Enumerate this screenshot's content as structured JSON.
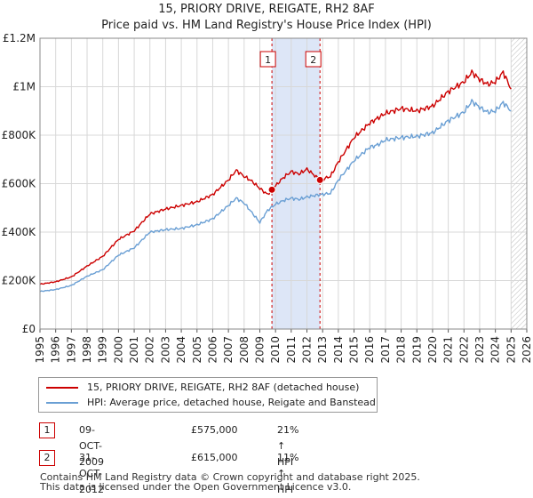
{
  "chart_data": {
    "type": "line",
    "title": "15, PRIORY DRIVE, REIGATE, RH2 8AF",
    "subtitle": "Price paid vs. HM Land Registry's House Price Index (HPI)",
    "xlabel": "",
    "ylabel": "",
    "xlim": [
      1995,
      2026
    ],
    "ylim": [
      0,
      1200000
    ],
    "grid": true,
    "x_ticks": [
      1995,
      1996,
      1997,
      1998,
      1999,
      2000,
      2001,
      2002,
      2003,
      2004,
      2005,
      2006,
      2007,
      2008,
      2009,
      2010,
      2011,
      2012,
      2013,
      2014,
      2015,
      2016,
      2017,
      2018,
      2019,
      2020,
      2021,
      2022,
      2023,
      2024,
      2025,
      2026
    ],
    "y_ticks": [
      {
        "value": 0,
        "label": "£0"
      },
      {
        "value": 200000,
        "label": "£200K"
      },
      {
        "value": 400000,
        "label": "£400K"
      },
      {
        "value": 600000,
        "label": "£600K"
      },
      {
        "value": 800000,
        "label": "£800K"
      },
      {
        "value": 1000000,
        "label": "£1M"
      },
      {
        "value": 1200000,
        "label": "£1.2M"
      }
    ],
    "shaded_range": [
      2009.77,
      2012.83
    ],
    "hatched_from": 2025.0,
    "series": [
      {
        "name": "15, PRIORY DRIVE, REIGATE, RH2 8AF (detached house)",
        "color": "#cc0000",
        "x": [
          1995.0,
          1996.0,
          1997.0,
          1998.0,
          1999.0,
          2000.0,
          2001.0,
          2002.0,
          2003.0,
          2004.0,
          2005.0,
          2006.0,
          2007.0,
          2007.5,
          2008.0,
          2008.5,
          2009.0,
          2009.5,
          2009.77,
          2010.5,
          2011.0,
          2011.5,
          2012.0,
          2012.83,
          2013.5,
          2014.0,
          2015.0,
          2016.0,
          2016.5,
          2017.0,
          2018.0,
          2019.0,
          2020.0,
          2021.0,
          2022.0,
          2022.5,
          2023.0,
          2023.5,
          2024.0,
          2024.5,
          2025.0
        ],
        "y": [
          185000,
          195000,
          215000,
          260000,
          300000,
          370000,
          405000,
          475000,
          495000,
          510000,
          525000,
          555000,
          615000,
          655000,
          630000,
          610000,
          580000,
          555000,
          575000,
          625000,
          650000,
          640000,
          660000,
          615000,
          630000,
          690000,
          790000,
          850000,
          870000,
          890000,
          910000,
          900000,
          920000,
          980000,
          1020000,
          1060000,
          1030000,
          1010000,
          1020000,
          1060000,
          990000
        ]
      },
      {
        "name": "HPI: Average price, detached house, Reigate and Banstead",
        "color": "#6a9fd4",
        "x": [
          1995.0,
          1996.0,
          1997.0,
          1998.0,
          1999.0,
          2000.0,
          2001.0,
          2002.0,
          2003.0,
          2004.0,
          2005.0,
          2006.0,
          2007.0,
          2007.5,
          2008.0,
          2008.5,
          2009.0,
          2009.5,
          2010.0,
          2010.5,
          2011.0,
          2011.5,
          2012.0,
          2012.83,
          2013.5,
          2014.0,
          2015.0,
          2016.0,
          2016.5,
          2017.0,
          2018.0,
          2019.0,
          2020.0,
          2021.0,
          2022.0,
          2022.5,
          2023.0,
          2023.5,
          2024.0,
          2024.5,
          2025.0
        ],
        "y": [
          155000,
          163000,
          180000,
          218000,
          245000,
          305000,
          335000,
          400000,
          410000,
          415000,
          430000,
          455000,
          510000,
          540000,
          520000,
          480000,
          440000,
          490000,
          515000,
          530000,
          540000,
          535000,
          545000,
          555000,
          560000,
          615000,
          695000,
          750000,
          760000,
          780000,
          790000,
          795000,
          810000,
          860000,
          895000,
          940000,
          915000,
          895000,
          900000,
          935000,
          900000
        ]
      }
    ],
    "markers": [
      {
        "label": "1",
        "x": 2009.77,
        "y": 575000
      },
      {
        "label": "2",
        "x": 2012.83,
        "y": 615000
      }
    ]
  },
  "legend": {
    "property_label": "15, PRIORY DRIVE, REIGATE, RH2 8AF (detached house)",
    "hpi_label": "HPI: Average price, detached house, Reigate and Banstead"
  },
  "annotations": [
    {
      "label": "1",
      "date": "09-OCT-2009",
      "price": "£575,000",
      "hpi": "21% ↑ HPI"
    },
    {
      "label": "2",
      "date": "31-OCT-2012",
      "price": "£615,000",
      "hpi": "11% ↑ HPI"
    }
  ],
  "footer": {
    "line1": "Contains HM Land Registry data © Crown copyright and database right 2025.",
    "line2": "This data is licensed under the Open Government Licence v3.0."
  }
}
